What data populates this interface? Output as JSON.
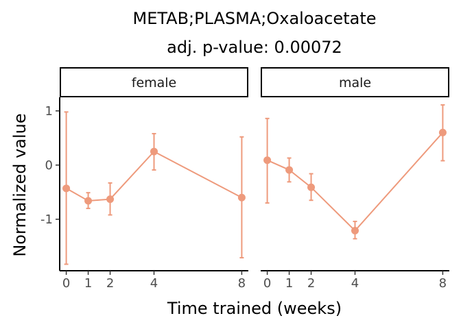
{
  "chart_data": {
    "type": "line",
    "title": "METAB;PLASMA;Oxaloacetate",
    "subtitle": "adj. p-value: 0.00072",
    "xlabel": "Time trained (weeks)",
    "ylabel": "Normalized value",
    "x_ticks": [
      0,
      1,
      2,
      4,
      8
    ],
    "y_ticks": [
      1,
      0,
      -1
    ],
    "xlim": [
      -0.3,
      8.3
    ],
    "ylim": [
      -1.95,
      1.25
    ],
    "color": "#EE9A7C",
    "grid": false,
    "panels": [
      {
        "label": "female",
        "x": [
          0,
          1,
          2,
          4,
          8
        ],
        "y": [
          -0.43,
          -0.66,
          -0.63,
          0.25,
          -0.6
        ],
        "err_low": [
          -1.83,
          -0.8,
          -0.92,
          -0.09,
          -1.71
        ],
        "err_high": [
          0.98,
          -0.51,
          -0.33,
          0.58,
          0.52
        ]
      },
      {
        "label": "male",
        "x": [
          0,
          1,
          2,
          4,
          8
        ],
        "y": [
          0.09,
          -0.09,
          -0.41,
          -1.21,
          0.6
        ],
        "err_low": [
          -0.7,
          -0.31,
          -0.65,
          -1.36,
          0.08
        ],
        "err_high": [
          0.86,
          0.13,
          -0.16,
          -1.04,
          1.11
        ]
      }
    ]
  }
}
